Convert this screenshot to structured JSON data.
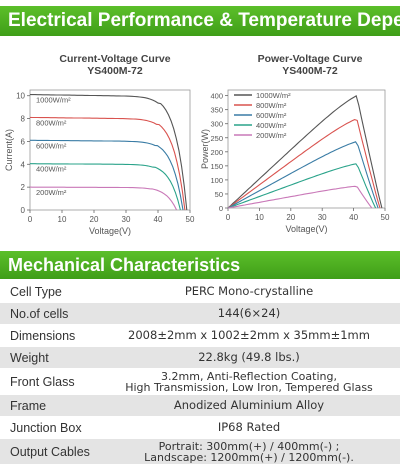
{
  "header": {
    "title": "Electrical Performance & Temperature Dependence"
  },
  "iv_chart": {
    "title_line1": "Current-Voltage Curve",
    "title_line2": "YS400M-72",
    "xlabel": "Voltage(V)",
    "ylabel": "Current(A)",
    "x_ticks": [
      "0",
      "10",
      "20",
      "30",
      "40",
      "50"
    ],
    "y_ticks": [
      "0",
      "2",
      "4",
      "6",
      "8",
      "10"
    ],
    "labels": [
      "1000W/m²",
      "800W/m²",
      "600W/m²",
      "400W/m²",
      "200W/m²"
    ]
  },
  "pv_chart": {
    "title_line1": "Power-Voltage Curve",
    "title_line2": "YS400M-72",
    "xlabel": "Voltage(V)",
    "ylabel": "Power(W)",
    "x_ticks": [
      "0",
      "10",
      "20",
      "30",
      "40",
      "50"
    ],
    "y_ticks": [
      "0",
      "50",
      "100",
      "150",
      "200",
      "250",
      "300",
      "350",
      "400"
    ],
    "legend": [
      "1000W/m²",
      "800W/m²",
      "600W/m²",
      "400W/m²",
      "200W/m²"
    ]
  },
  "chart_data": [
    {
      "type": "line",
      "title": "Current-Voltage Curve YS400M-72",
      "xlabel": "Voltage(V)",
      "ylabel": "Current(A)",
      "xlim": [
        0,
        50
      ],
      "ylim": [
        0,
        10.5
      ],
      "grid": false,
      "series": [
        {
          "name": "1000W/m²",
          "color": "#555555",
          "isc": 10.1,
          "voc": 49.0
        },
        {
          "name": "800W/m²",
          "color": "#d9534f",
          "isc": 8.1,
          "voc": 48.4
        },
        {
          "name": "600W/m²",
          "color": "#3a7ca5",
          "isc": 6.1,
          "voc": 47.8
        },
        {
          "name": "400W/m²",
          "color": "#2aa38a",
          "isc": 4.05,
          "voc": 47.0
        },
        {
          "name": "200W/m²",
          "color": "#c978b8",
          "isc": 2.0,
          "voc": 45.8
        }
      ]
    },
    {
      "type": "line",
      "title": "Power-Voltage Curve YS400M-72",
      "xlabel": "Voltage(V)",
      "ylabel": "Power(W)",
      "xlim": [
        0,
        50
      ],
      "ylim": [
        0,
        420
      ],
      "grid": false,
      "legend": "top-left",
      "series": [
        {
          "name": "1000W/m²",
          "color": "#555555",
          "pmax": 400,
          "vmp": 41.0,
          "voc": 49.0
        },
        {
          "name": "800W/m²",
          "color": "#d9534f",
          "pmax": 318,
          "vmp": 41.0,
          "voc": 48.4
        },
        {
          "name": "600W/m²",
          "color": "#3a7ca5",
          "pmax": 237,
          "vmp": 41.0,
          "voc": 47.8
        },
        {
          "name": "400W/m²",
          "color": "#2aa38a",
          "pmax": 158,
          "vmp": 41.0,
          "voc": 47.0
        },
        {
          "name": "200W/m²",
          "color": "#c978b8",
          "pmax": 78,
          "vmp": 41.0,
          "voc": 45.8
        }
      ]
    }
  ],
  "mech": {
    "title": "Mechanical Characteristics",
    "rows": [
      {
        "key": "Cell Type",
        "value": "PERC Mono-crystalline"
      },
      {
        "key": "No.of cells",
        "value": "144(6×24)"
      },
      {
        "key": "Dimensions",
        "value": "2008±2mm x 1002±2mm x 35mm±1mm"
      },
      {
        "key": "Weight",
        "value": "22.8kg (49.8 lbs.)"
      },
      {
        "key": "Front Glass",
        "value": "3.2mm, Anti-Reflection Coating,",
        "value2": "High Transmission, Low Iron, Tempered Glass"
      },
      {
        "key": "Frame",
        "value": "Anodized Aluminium Alloy"
      },
      {
        "key": "Junction Box",
        "value": "IP68 Rated"
      },
      {
        "key": "Output Cables",
        "value": "Portrait: 300mm(+) / 400mm(-) ;",
        "value2": "Landscape: 1200mm(+) / 1200mm(-)."
      }
    ]
  }
}
